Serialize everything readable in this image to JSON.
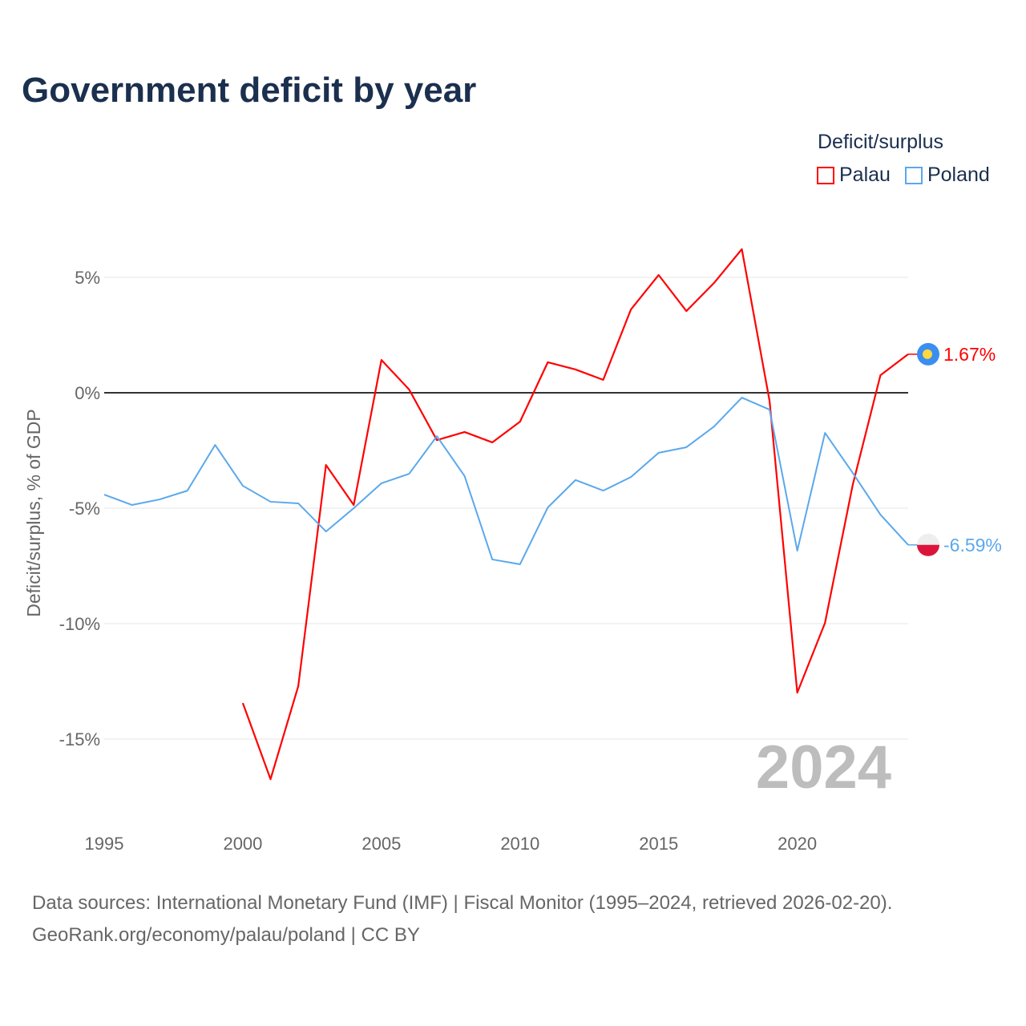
{
  "title": "Government deficit by year",
  "legend": {
    "title": "Deficit/surplus",
    "items": [
      {
        "name": "Palau",
        "color": "#ff0000"
      },
      {
        "name": "Poland",
        "color": "#5ba8ec"
      }
    ]
  },
  "year_watermark": "2024",
  "sources": {
    "line1": "Data sources: International Monetary Fund (IMF) | Fiscal Monitor (1995–2024, retrieved 2026-02-20).",
    "line2": "GeoRank.org/economy/palau/poland | CC BY"
  },
  "chart_data": {
    "type": "line",
    "title": "Government deficit by year",
    "xlabel": "",
    "ylabel": "Deficit/surplus, % of GDP",
    "xlim": [
      1995,
      2024
    ],
    "ylim": [
      -18,
      7.5
    ],
    "x_ticks": [
      1995,
      2000,
      2005,
      2010,
      2015,
      2020
    ],
    "x_tick_labels": [
      "1995",
      "2000",
      "2005",
      "2010",
      "2015",
      "2020"
    ],
    "y_ticks": [
      5,
      0,
      -5,
      -10,
      -15
    ],
    "y_tick_labels": [
      "5%",
      "0%",
      "-5%",
      "-10%",
      "-15%"
    ],
    "grid": true,
    "legend_position": "top-right",
    "series": [
      {
        "name": "Palau",
        "color": "#ff0000",
        "end_label": "1.67%",
        "x": [
          2000,
          2001,
          2002,
          2003,
          2004,
          2005,
          2006,
          2007,
          2008,
          2009,
          2010,
          2011,
          2012,
          2013,
          2014,
          2015,
          2016,
          2017,
          2018,
          2019,
          2020,
          2021,
          2022,
          2023,
          2024
        ],
        "values": [
          -13.44,
          -16.74,
          -12.71,
          -3.13,
          -4.86,
          1.42,
          0.14,
          -2.05,
          -1.7,
          -2.15,
          -1.25,
          1.32,
          1.01,
          0.56,
          3.61,
          5.1,
          3.54,
          4.76,
          6.22,
          -0.35,
          -12.99,
          -9.97,
          -3.99,
          0.76,
          1.67
        ]
      },
      {
        "name": "Poland",
        "color": "#5ba8ec",
        "end_label": "-6.59%",
        "x": [
          1995,
          1996,
          1997,
          1998,
          1999,
          2000,
          2001,
          2002,
          2003,
          2004,
          2005,
          2006,
          2007,
          2008,
          2009,
          2010,
          2011,
          2012,
          2013,
          2014,
          2015,
          2016,
          2017,
          2018,
          2019,
          2020,
          2021,
          2022,
          2023,
          2024
        ],
        "values": [
          -4.41,
          -4.86,
          -4.62,
          -4.24,
          -2.26,
          -4.03,
          -4.72,
          -4.79,
          -6.01,
          -5.0,
          -3.92,
          -3.51,
          -1.88,
          -3.61,
          -7.22,
          -7.43,
          -4.97,
          -3.78,
          -4.24,
          -3.65,
          -2.6,
          -2.36,
          -1.46,
          -0.21,
          -0.73,
          -6.84,
          -1.74,
          -3.47,
          -5.28,
          -6.59
        ]
      }
    ]
  }
}
